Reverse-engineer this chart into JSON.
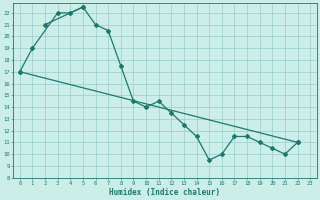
{
  "xlabel": "Humidex (Indice chaleur)",
  "background_color": "#cceee8",
  "grid_color": "#99cccc",
  "line_color": "#1a7a6e",
  "xlim": [
    -0.5,
    23.5
  ],
  "ylim": [
    8,
    22.8
  ],
  "yticks": [
    8,
    9,
    10,
    11,
    12,
    13,
    14,
    15,
    16,
    17,
    18,
    19,
    20,
    21,
    22
  ],
  "xticks": [
    0,
    1,
    2,
    3,
    4,
    5,
    6,
    7,
    8,
    9,
    10,
    11,
    12,
    13,
    14,
    15,
    16,
    17,
    18,
    19,
    20,
    21,
    22,
    23
  ],
  "series1_x": [
    0,
    1,
    3,
    4,
    5,
    6,
    7,
    8,
    9,
    10,
    11,
    12,
    13,
    14,
    15,
    16,
    17,
    18,
    19,
    20,
    21,
    22
  ],
  "series1_y": [
    17.0,
    19.0,
    22.0,
    22.0,
    22.5,
    21.0,
    20.5,
    17.5,
    14.5,
    14.0,
    14.5,
    13.5,
    12.5,
    11.5,
    9.5,
    10.0,
    11.5,
    11.5,
    11.0,
    10.5,
    10.0,
    11.0
  ],
  "series2_x": [
    2,
    5
  ],
  "series2_y": [
    21.0,
    22.5
  ],
  "trend_x": [
    0,
    22
  ],
  "trend_y": [
    17.0,
    11.0
  ],
  "marker_size": 2.0,
  "line_width": 0.9,
  "tick_fontsize": 4.0,
  "xlabel_fontsize": 5.5
}
